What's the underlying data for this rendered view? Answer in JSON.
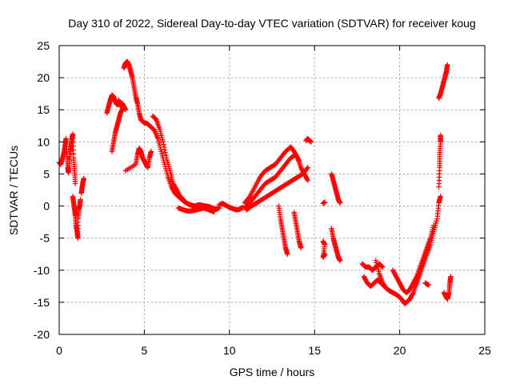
{
  "chart_data": {
    "type": "scatter",
    "title": "Day 310 of 2022, Sidereal Day-to-day VTEC variation (SDTVAR) for receiver koug",
    "xlabel": "GPS time / hours",
    "ylabel": "SDTVAR / TECUs",
    "xlim": [
      0,
      25
    ],
    "ylim": [
      -20,
      25
    ],
    "x_ticks": [
      0,
      5,
      10,
      15,
      20,
      25
    ],
    "y_ticks": [
      -20,
      -15,
      -10,
      -5,
      0,
      5,
      10,
      15,
      20,
      25
    ],
    "grid": true,
    "marker": "plus",
    "series_color": "#ff0000",
    "series": [
      {
        "name": "SDTVAR",
        "segments": [
          [
            [
              0.0,
              6.8
            ],
            [
              0.1,
              6.5
            ],
            [
              0.2,
              7.5
            ],
            [
              0.3,
              8.5
            ],
            [
              0.35,
              9.5
            ],
            [
              0.4,
              10.5
            ],
            [
              0.45,
              8.0
            ],
            [
              0.5,
              6.0
            ],
            [
              0.55,
              5.2
            ],
            [
              0.6,
              7.0
            ],
            [
              0.65,
              8.5
            ],
            [
              0.7,
              9.5
            ],
            [
              0.75,
              10.5
            ],
            [
              0.8,
              11.2
            ],
            [
              0.85,
              7.5
            ],
            [
              0.9,
              5.5
            ],
            [
              0.95,
              3.5
            ]
          ],
          [
            [
              0.8,
              1.5
            ],
            [
              0.85,
              0.5
            ],
            [
              0.9,
              -0.5
            ],
            [
              0.95,
              -1.5
            ],
            [
              1.0,
              -3.0
            ],
            [
              1.05,
              -4.0
            ],
            [
              1.1,
              -5.0
            ],
            [
              1.1,
              -2.0
            ],
            [
              1.15,
              -0.5
            ],
            [
              1.2,
              0.0
            ],
            [
              1.25,
              1.0
            ]
          ],
          [
            [
              1.3,
              2.0
            ],
            [
              1.35,
              3.0
            ],
            [
              1.4,
              3.8
            ],
            [
              1.45,
              4.3
            ]
          ],
          [
            [
              2.8,
              14.5
            ],
            [
              2.9,
              15.5
            ],
            [
              3.0,
              16.5
            ],
            [
              3.1,
              17.3
            ],
            [
              3.2,
              17.0
            ],
            [
              3.3,
              16.2
            ],
            [
              3.4,
              15.8
            ],
            [
              3.5,
              16.5
            ],
            [
              3.6,
              15.5
            ],
            [
              3.7,
              16.0
            ],
            [
              3.8,
              15.5
            ],
            [
              3.9,
              15.0
            ]
          ],
          [
            [
              3.1,
              8.5
            ],
            [
              3.2,
              10.0
            ],
            [
              3.3,
              11.5
            ],
            [
              3.4,
              12.5
            ],
            [
              3.5,
              13.5
            ],
            [
              3.6,
              14.5
            ],
            [
              3.7,
              15.0
            ]
          ],
          [
            [
              3.8,
              21.5
            ],
            [
              3.9,
              22.3
            ],
            [
              4.0,
              22.5
            ],
            [
              4.1,
              22.0
            ],
            [
              4.2,
              21.0
            ],
            [
              4.3,
              20.0
            ],
            [
              4.4,
              18.5
            ],
            [
              4.5,
              17.0
            ],
            [
              4.6,
              16.0
            ],
            [
              4.7,
              14.5
            ],
            [
              4.8,
              13.5
            ],
            [
              4.9,
              13.2
            ],
            [
              5.0,
              13.0
            ],
            [
              5.2,
              12.8
            ],
            [
              5.4,
              12.3
            ],
            [
              5.6,
              11.8
            ],
            [
              5.8,
              10.5
            ],
            [
              6.0,
              8.5
            ],
            [
              6.2,
              6.5
            ],
            [
              6.4,
              4.5
            ],
            [
              6.6,
              3.0
            ],
            [
              6.8,
              2.0
            ],
            [
              7.0,
              1.5
            ],
            [
              7.2,
              1.0
            ],
            [
              7.4,
              0.6
            ],
            [
              7.6,
              0.3
            ],
            [
              7.8,
              0.1
            ],
            [
              8.0,
              0.0
            ],
            [
              8.2,
              0.2
            ],
            [
              8.4,
              0.1
            ],
            [
              8.6,
              0.0
            ],
            [
              8.8,
              -0.1
            ],
            [
              9.0,
              -0.3
            ],
            [
              9.2,
              -0.5
            ],
            [
              9.4,
              -0.3
            ]
          ],
          [
            [
              3.9,
              5.5
            ],
            [
              4.5,
              6.5
            ],
            [
              4.6,
              8.0
            ],
            [
              4.7,
              9.0
            ],
            [
              4.8,
              8.5
            ],
            [
              4.9,
              7.5
            ],
            [
              5.0,
              7.0
            ],
            [
              5.1,
              6.5
            ],
            [
              5.2,
              6.0
            ],
            [
              5.3,
              7.5
            ],
            [
              5.4,
              8.5
            ]
          ],
          [
            [
              5.5,
              14.0
            ],
            [
              5.7,
              13.5
            ],
            [
              5.9,
              12.0
            ],
            [
              6.1,
              10.0
            ],
            [
              6.3,
              7.5
            ],
            [
              6.5,
              5.5
            ],
            [
              6.7,
              3.5
            ],
            [
              6.9,
              2.5
            ],
            [
              7.1,
              1.5
            ],
            [
              7.3,
              1.0
            ]
          ],
          [
            [
              7.0,
              -0.3
            ],
            [
              7.3,
              -0.6
            ],
            [
              7.6,
              -0.8
            ],
            [
              7.9,
              -0.7
            ],
            [
              8.2,
              -0.5
            ],
            [
              8.5,
              -0.3
            ],
            [
              8.8,
              -0.6
            ],
            [
              9.1,
              -0.9
            ]
          ],
          [
            [
              9.4,
              0.2
            ],
            [
              9.6,
              0.4
            ],
            [
              9.8,
              0.1
            ],
            [
              10.0,
              -0.2
            ],
            [
              10.2,
              -0.4
            ],
            [
              10.4,
              -0.6
            ],
            [
              10.6,
              -0.5
            ],
            [
              10.8,
              -0.2
            ]
          ],
          [
            [
              10.9,
              0.5
            ],
            [
              11.2,
              1.5
            ],
            [
              11.5,
              3.0
            ],
            [
              11.8,
              4.5
            ],
            [
              12.1,
              5.5
            ],
            [
              12.4,
              6.0
            ],
            [
              12.7,
              6.5
            ],
            [
              13.0,
              7.5
            ],
            [
              13.3,
              8.5
            ],
            [
              13.6,
              9.2
            ],
            [
              13.8,
              8.5
            ],
            [
              14.0,
              7.5
            ],
            [
              14.2,
              6.0
            ],
            [
              14.4,
              5.0
            ],
            [
              14.6,
              4.0
            ]
          ],
          [
            [
              10.9,
              -0.3
            ],
            [
              11.2,
              0.5
            ],
            [
              11.5,
              1.5
            ],
            [
              11.8,
              2.5
            ],
            [
              12.1,
              3.5
            ],
            [
              12.4,
              4.0
            ],
            [
              12.7,
              4.5
            ],
            [
              13.0,
              5.5
            ],
            [
              13.3,
              6.5
            ],
            [
              13.6,
              7.5
            ],
            [
              13.9,
              8.0
            ],
            [
              14.1,
              7.0
            ]
          ],
          [
            [
              11.0,
              -0.6
            ],
            [
              11.3,
              0.0
            ],
            [
              11.6,
              0.5
            ],
            [
              11.9,
              1.0
            ],
            [
              12.2,
              1.5
            ],
            [
              12.5,
              2.0
            ],
            [
              12.8,
              2.5
            ],
            [
              13.1,
              3.0
            ],
            [
              13.4,
              3.5
            ],
            [
              13.7,
              4.0
            ],
            [
              14.0,
              4.5
            ],
            [
              14.3,
              5.0
            ],
            [
              14.6,
              6.0
            ]
          ],
          [
            [
              12.9,
              0.0
            ],
            [
              13.0,
              -2.0
            ],
            [
              13.1,
              -3.5
            ],
            [
              13.2,
              -5.0
            ],
            [
              13.3,
              -6.5
            ],
            [
              13.4,
              -7.5
            ]
          ],
          [
            [
              13.8,
              -1.0
            ],
            [
              13.9,
              -2.5
            ],
            [
              14.0,
              -4.0
            ],
            [
              14.1,
              -5.5
            ],
            [
              14.2,
              -6.5
            ]
          ],
          [
            [
              14.5,
              10.2
            ],
            [
              14.6,
              10.5
            ],
            [
              14.7,
              10.2
            ],
            [
              14.8,
              10.0
            ]
          ],
          [
            [
              15.5,
              0.4
            ],
            [
              15.6,
              0.6
            ]
          ],
          [
            [
              15.5,
              -5.5
            ],
            [
              15.6,
              -6.0
            ],
            [
              15.5,
              -8.0
            ],
            [
              15.6,
              -7.5
            ]
          ],
          [
            [
              16.0,
              5.0
            ],
            [
              16.1,
              4.0
            ],
            [
              16.2,
              3.0
            ],
            [
              16.3,
              2.0
            ],
            [
              16.4,
              1.0
            ],
            [
              16.5,
              0.5
            ]
          ],
          [
            [
              16.0,
              -3.5
            ],
            [
              16.1,
              -5.0
            ],
            [
              16.2,
              -6.0
            ],
            [
              16.3,
              -7.0
            ],
            [
              16.4,
              -8.0
            ],
            [
              16.5,
              -8.5
            ]
          ],
          [
            [
              17.8,
              -9.0
            ],
            [
              18.0,
              -9.5
            ],
            [
              18.2,
              -9.5
            ],
            [
              18.4,
              -10.0
            ],
            [
              18.6,
              -9.5
            ],
            [
              18.8,
              -9.0
            ],
            [
              19.0,
              -9.5
            ]
          ],
          [
            [
              17.9,
              -11.0
            ],
            [
              18.1,
              -12.0
            ],
            [
              18.3,
              -12.5
            ],
            [
              18.5,
              -12.0
            ],
            [
              18.7,
              -11.5
            ],
            [
              18.9,
              -12.0
            ],
            [
              19.1,
              -12.5
            ]
          ],
          [
            [
              18.6,
              -8.5
            ],
            [
              18.8,
              -10.5
            ],
            [
              19.0,
              -12.0
            ],
            [
              19.2,
              -12.8
            ],
            [
              19.4,
              -13.2
            ],
            [
              19.6,
              -13.5
            ],
            [
              19.8,
              -13.8
            ],
            [
              20.0,
              -14.2
            ],
            [
              20.2,
              -14.8
            ],
            [
              20.3,
              -15.2
            ],
            [
              20.4,
              -15.0
            ],
            [
              20.6,
              -14.5
            ],
            [
              20.8,
              -13.5
            ],
            [
              21.0,
              -12.0
            ],
            [
              21.2,
              -10.5
            ],
            [
              21.4,
              -9.0
            ],
            [
              21.6,
              -7.5
            ],
            [
              21.8,
              -6.0
            ],
            [
              22.0,
              -4.0
            ],
            [
              22.2,
              -2.0
            ],
            [
              22.3,
              0.5
            ],
            [
              22.4,
              1.5
            ]
          ],
          [
            [
              19.6,
              -10.0
            ],
            [
              19.8,
              -11.0
            ],
            [
              20.0,
              -12.0
            ],
            [
              20.2,
              -13.0
            ],
            [
              20.4,
              -13.5
            ],
            [
              20.6,
              -13.0
            ],
            [
              20.8,
              -12.0
            ],
            [
              21.0,
              -11.0
            ],
            [
              21.2,
              -9.5
            ],
            [
              21.4,
              -8.0
            ],
            [
              21.6,
              -6.5
            ],
            [
              21.8,
              -5.0
            ],
            [
              22.0,
              -3.0
            ]
          ],
          [
            [
              21.5,
              -12.0
            ],
            [
              21.7,
              -12.3
            ]
          ],
          [
            [
              22.3,
              3.0
            ],
            [
              22.35,
              6.0
            ],
            [
              22.35,
              8.0
            ],
            [
              22.4,
              10.0
            ],
            [
              22.4,
              11.0
            ]
          ],
          [
            [
              22.3,
              16.8
            ],
            [
              22.4,
              17.5
            ],
            [
              22.5,
              18.5
            ],
            [
              22.6,
              19.5
            ],
            [
              22.7,
              20.5
            ],
            [
              22.75,
              21.0
            ],
            [
              22.8,
              22.0
            ]
          ],
          [
            [
              22.6,
              -13.5
            ],
            [
              22.7,
              -14.0
            ],
            [
              22.8,
              -14.5
            ],
            [
              22.9,
              -13.5
            ],
            [
              22.95,
              -12.0
            ],
            [
              23.0,
              -11.0
            ]
          ]
        ]
      }
    ]
  }
}
